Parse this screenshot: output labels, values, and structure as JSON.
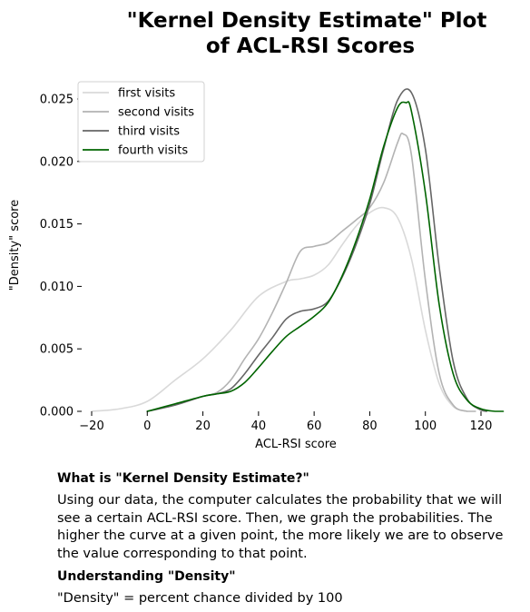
{
  "chart_data": {
    "type": "line",
    "title_lines": [
      "\"Kernel Density Estimate\" Plot",
      "of ACL-RSI Scores"
    ],
    "xlabel": "ACL-RSI score",
    "ylabel": "\"Density\" score",
    "xlim": [
      -25,
      130
    ],
    "ylim": [
      0,
      0.027
    ],
    "x_ticks": [
      -20,
      0,
      20,
      40,
      60,
      80,
      100,
      120
    ],
    "y_ticks": [
      0.0,
      0.005,
      0.01,
      0.015,
      0.02,
      0.025
    ],
    "x_tick_labels": [
      "−20",
      "0",
      "20",
      "40",
      "60",
      "80",
      "100",
      "120"
    ],
    "y_tick_labels": [
      "0.000",
      "0.005",
      "0.010",
      "0.015",
      "0.020",
      "0.025"
    ],
    "grid": false,
    "legend_position": "top-left",
    "series": [
      {
        "name": "first visits",
        "color": "#d9d9d9",
        "x": [
          -20,
          -10,
          0,
          10,
          20,
          30,
          40,
          50,
          55,
          60,
          65,
          70,
          75,
          80,
          85,
          90,
          95,
          100,
          105,
          110,
          115
        ],
        "y": [
          0.0,
          0.0002,
          0.0008,
          0.0025,
          0.0042,
          0.0065,
          0.0092,
          0.0104,
          0.0106,
          0.0109,
          0.0117,
          0.0133,
          0.0148,
          0.0159,
          0.0163,
          0.0155,
          0.0122,
          0.0065,
          0.0022,
          0.0004,
          0.0
        ]
      },
      {
        "name": "second visits",
        "color": "#b3b3b3",
        "x": [
          0,
          10,
          20,
          25,
          30,
          35,
          40,
          45,
          50,
          55,
          60,
          65,
          70,
          75,
          80,
          85,
          90,
          92,
          95,
          100,
          105,
          110,
          115,
          118
        ],
        "y": [
          0.0,
          0.0005,
          0.0012,
          0.0015,
          0.0025,
          0.0042,
          0.0058,
          0.0079,
          0.0103,
          0.0128,
          0.0132,
          0.0135,
          0.0144,
          0.0153,
          0.0163,
          0.0183,
          0.0215,
          0.0222,
          0.0205,
          0.0105,
          0.003,
          0.0005,
          0.0,
          0.0
        ]
      },
      {
        "name": "third visits",
        "color": "#666666",
        "x": [
          0,
          10,
          20,
          25,
          30,
          35,
          40,
          45,
          50,
          55,
          60,
          65,
          70,
          75,
          80,
          85,
          90,
          95,
          100,
          105,
          110,
          115,
          120,
          122
        ],
        "y": [
          0.0,
          0.0005,
          0.0012,
          0.0014,
          0.0018,
          0.003,
          0.0045,
          0.0059,
          0.0074,
          0.008,
          0.0082,
          0.0088,
          0.0107,
          0.0133,
          0.0166,
          0.021,
          0.0249,
          0.0255,
          0.021,
          0.0115,
          0.004,
          0.001,
          0.0001,
          0.0
        ]
      },
      {
        "name": "fourth visits",
        "color": "#006400",
        "x": [
          0,
          10,
          20,
          25,
          30,
          35,
          40,
          45,
          50,
          55,
          60,
          65,
          70,
          75,
          80,
          85,
          90,
          93,
          95,
          100,
          105,
          110,
          115,
          120,
          125,
          128
        ],
        "y": [
          0.0,
          0.0006,
          0.0012,
          0.0014,
          0.0016,
          0.0023,
          0.0035,
          0.0048,
          0.006,
          0.0068,
          0.0076,
          0.0087,
          0.0108,
          0.0136,
          0.017,
          0.0212,
          0.0243,
          0.0247,
          0.024,
          0.0175,
          0.0085,
          0.003,
          0.0009,
          0.0002,
          0.0,
          0.0
        ]
      }
    ]
  },
  "explanation": {
    "heading1": "What is \"Kernel Density Estimate?\"",
    "paragraph1": "Using our data, the computer calculates the probability that we will see a certain ACL-RSI score. Then, we graph the probabilities. The higher the curve at a given point, the more likely we are to observe the value corresponding to that point.",
    "heading2": "Understanding \"Density\"",
    "paragraph2": "\"Density\" = percent chance divided by 100"
  }
}
